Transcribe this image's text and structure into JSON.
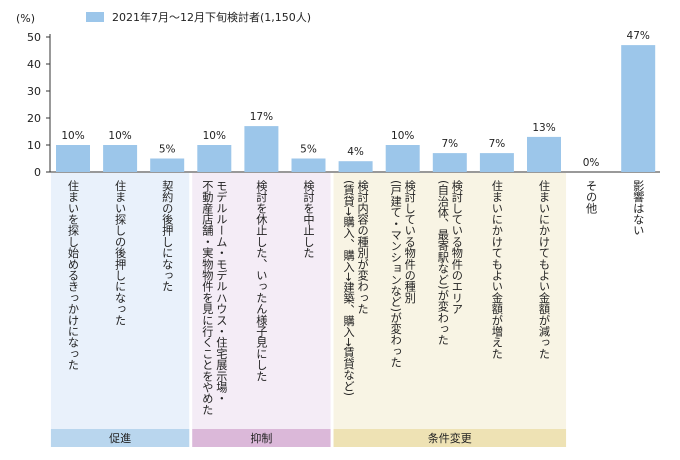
{
  "chart_data": {
    "type": "bar",
    "ylabel": "(%)",
    "ylim": [
      0,
      50
    ],
    "yticks": [
      0,
      10,
      20,
      30,
      40,
      50
    ],
    "legend": {
      "label": "2021年7月〜12月下旬検討者(1,150人)",
      "position": "top-left"
    },
    "grid": false,
    "series": [
      {
        "name": "2021年7月〜12月下旬検討者(1,150人)",
        "color": "#9cc6ea",
        "values": [
          10,
          10,
          5,
          10,
          17,
          5,
          4,
          10,
          7,
          7,
          13,
          0,
          47
        ]
      }
    ],
    "value_labels": [
      "10%",
      "10%",
      "5%",
      "10%",
      "17%",
      "5%",
      "4%",
      "10%",
      "7%",
      "7%",
      "13%",
      "0%",
      "47%"
    ],
    "categories": [
      [
        "住まいを探し始めるきっかけになった"
      ],
      [
        "住まい探しの後押しになった"
      ],
      [
        "契約の後押しになった"
      ],
      [
        "モデルルーム・モデルハウス・住宅展示場・",
        "不動産店舗・実物物件を見に行くことをやめた"
      ],
      [
        "検討を休止した、いったん様子見にした"
      ],
      [
        "検討を中止した"
      ],
      [
        "検討内容の種別が変わった",
        "(賃貸→購入、購入→建築、購入→賃貸など)"
      ],
      [
        "検討している物件の種別",
        "(戸建て・マンションなど)が変わった"
      ],
      [
        "検討している物件のエリア",
        "(自治体、最寄駅など)が変わった"
      ],
      [
        "住まいにかけてもよい金額が増えた"
      ],
      [
        "住まいにかけてもよい金額が減った"
      ],
      [
        "その他"
      ],
      [
        "影響はない"
      ]
    ],
    "groups": [
      {
        "label": "促進",
        "start": 0,
        "end": 2,
        "color": "#e9f1fb",
        "tag_color": "#b9d6ee"
      },
      {
        "label": "抑制",
        "start": 3,
        "end": 5,
        "color": "#f4ecf6",
        "tag_color": "#dbb8d9"
      },
      {
        "label": "条件変更",
        "start": 6,
        "end": 10,
        "color": "#f8f4e4",
        "tag_color": "#eee2b4"
      }
    ]
  }
}
